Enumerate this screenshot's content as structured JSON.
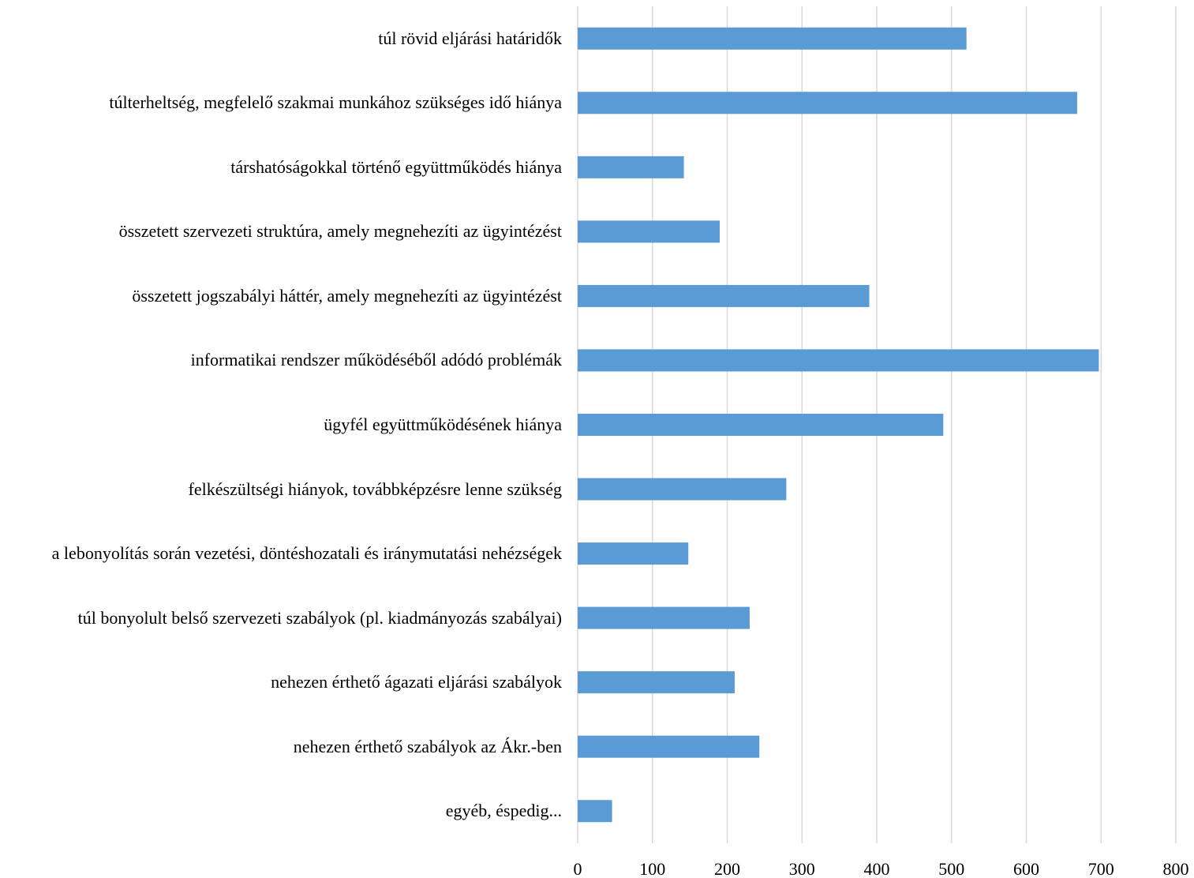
{
  "chart_data": {
    "type": "bar",
    "orientation": "horizontal",
    "categories": [
      "túl rövid eljárási határidők",
      "túlterheltség, megfelelő szakmai munkához szükséges idő hiánya",
      "társhatóságokkal történő együttműködés hiánya",
      "összetett szervezeti struktúra, amely megnehezíti az ügyintézést",
      "összetett jogszabályi háttér, amely megnehezíti az ügyintézést",
      "informatikai rendszer működéséből adódó problémák",
      "ügyfél együttműködésének hiánya",
      "felkészültségi hiányok, továbbképzésre lenne szükség",
      "a lebonyolítás során vezetési, döntéshozatali és iránymutatási nehézségek",
      "túl bonyolult belső szervezeti szabályok (pl. kiadmányozás szabályai)",
      "nehezen érthető ágazati eljárási szabályok",
      "nehezen érthető szabályok az Ákr.-ben",
      "egyéb, éspedig..."
    ],
    "values": [
      520,
      668,
      142,
      190,
      390,
      697,
      489,
      279,
      148,
      230,
      210,
      243,
      46
    ],
    "color": "#5b9bd5",
    "xlim": [
      0,
      800
    ],
    "xticks": [
      0,
      100,
      200,
      300,
      400,
      500,
      600,
      700,
      800
    ],
    "grid": true
  }
}
